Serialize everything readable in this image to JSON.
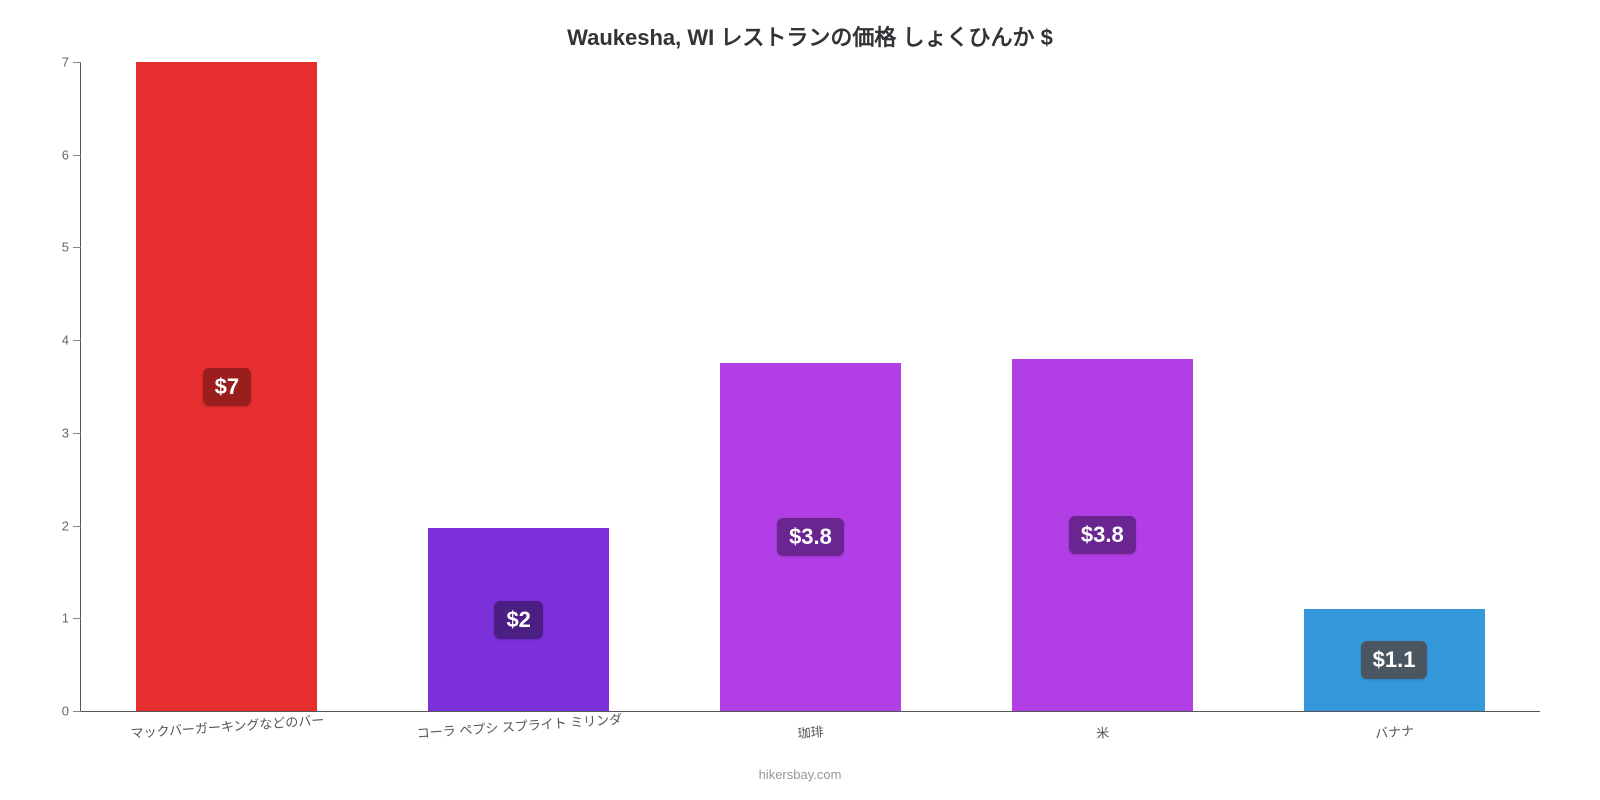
{
  "chart": {
    "type": "bar",
    "title": "Waukesha, WI レストランの価格 しょくひんか $",
    "title_fontsize": 22,
    "title_color": "#333337",
    "background_color": "#ffffff",
    "axis_color": "#555555",
    "ylim": [
      0,
      7
    ],
    "ytick_step": 1,
    "ytick_labels": [
      "0",
      "1",
      "2",
      "3",
      "4",
      "5",
      "6",
      "7"
    ],
    "ytick_color": "#666666",
    "bar_width_pct": 62,
    "label_fontsize": 13,
    "label_color": "#555555",
    "value_fontsize": 22,
    "bars": [
      {
        "category": "マックバーガーキングなどのバー",
        "value": 7.0,
        "display": "$7",
        "color": "#e62e2e",
        "badge_bg": "#9a1e1e"
      },
      {
        "category": "コーラ ペプシ スプライト ミリンダ",
        "value": 1.97,
        "display": "$2",
        "color": "#7b30d9",
        "badge_bg": "#4a1e83"
      },
      {
        "category": "珈琲",
        "value": 3.75,
        "display": "$3.8",
        "color": "#b23ee6",
        "badge_bg": "#6b2591"
      },
      {
        "category": "米",
        "value": 3.8,
        "display": "$3.8",
        "color": "#b23ee6",
        "badge_bg": "#6b2591"
      },
      {
        "category": "バナナ",
        "value": 1.1,
        "display": "$1.1",
        "color": "#3498db",
        "badge_bg": "#4a5761"
      }
    ],
    "footer": "hikersbay.com",
    "footer_color": "#999999"
  }
}
